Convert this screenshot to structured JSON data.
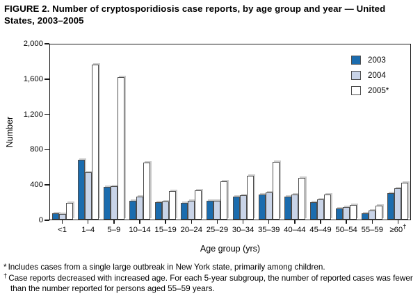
{
  "figure": {
    "title": "FIGURE 2. Number of cryptosporidiosis case reports, by age group and year — United States, 2003–2005"
  },
  "chart_data": {
    "type": "bar",
    "title": "FIGURE 2. Number of cryptosporidiosis case reports, by age group and year — United States, 2003–2005",
    "xlabel": "Age group (yrs)",
    "ylabel": "Number",
    "ylim": [
      0,
      2000
    ],
    "grid": false,
    "legend_position": "top-right-inside",
    "y_ticks": [
      0,
      400,
      800,
      1200,
      1600,
      2000
    ],
    "y_tick_labels": [
      "0",
      "400",
      "800",
      "1,200",
      "1,600",
      "2,000"
    ],
    "categories": [
      {
        "label": "<1"
      },
      {
        "label": "1–4"
      },
      {
        "label": "5–9"
      },
      {
        "label": "10–14"
      },
      {
        "label": "15–19"
      },
      {
        "label": "20–24"
      },
      {
        "label": "25–29"
      },
      {
        "label": "30–34"
      },
      {
        "label": "35–39"
      },
      {
        "label": "40–44"
      },
      {
        "label": "45–49"
      },
      {
        "label": "50–54"
      },
      {
        "label": "55–59"
      },
      {
        "label": "≥60",
        "sup": "†"
      }
    ],
    "series": [
      {
        "name": "2003",
        "color": "#1B6CAE",
        "values": [
          75,
          685,
          375,
          215,
          200,
          195,
          215,
          265,
          290,
          265,
          200,
          130,
          75,
          300
        ]
      },
      {
        "name": "2004",
        "color": "#C9D4E8",
        "values": [
          60,
          540,
          385,
          260,
          210,
          215,
          215,
          275,
          310,
          285,
          230,
          145,
          105,
          355
        ]
      },
      {
        "name": "2005*",
        "color": "#FFFFFF",
        "values": [
          190,
          1775,
          1630,
          655,
          325,
          335,
          440,
          500,
          660,
          480,
          285,
          165,
          160,
          425
        ]
      }
    ]
  },
  "footnotes": {
    "line1_marker": "*",
    "line1": "Includes cases from a single large outbreak in New York state, primarily among children.",
    "line2_marker": "†",
    "line2": "Case reports decreased with increased age. For each 5-year subgroup, the number of reported cases was fewer than the number reported for persons aged 55–59 years."
  }
}
